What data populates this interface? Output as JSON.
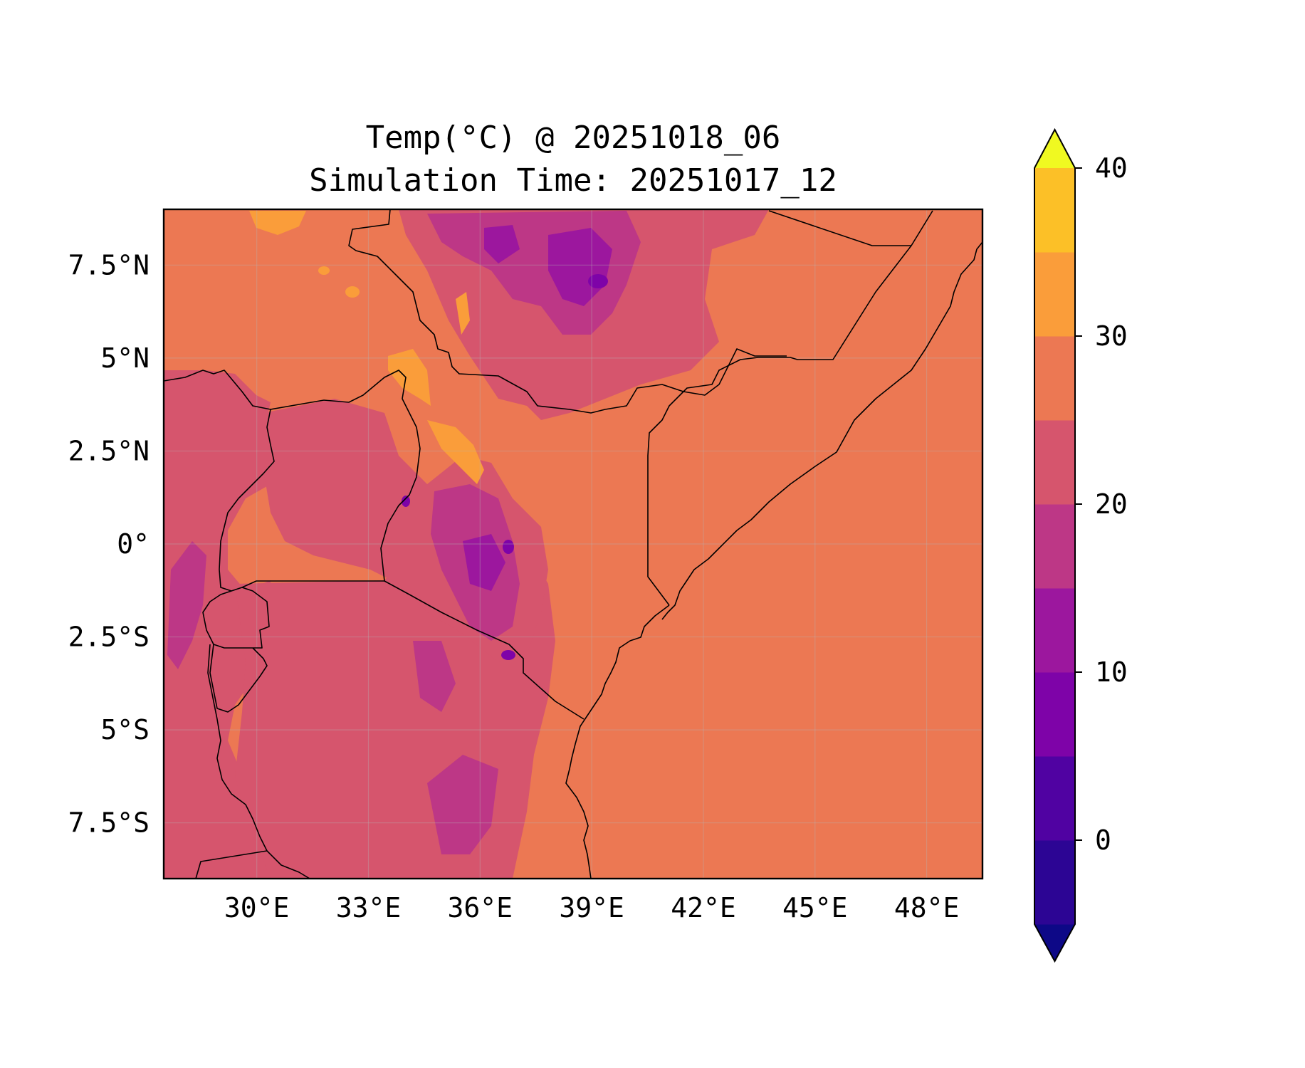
{
  "title": {
    "line1": "Temp(°C) @ 20251018_06",
    "line2": "Simulation Time: 20251017_12"
  },
  "map": {
    "projection": "lat-lon",
    "lon_range": [
      27.5,
      49.5
    ],
    "lat_range": [
      -9,
      9
    ],
    "gridlines": true,
    "boundaries": "country borders and coastline",
    "x_ticks": [
      "30°E",
      "33°E",
      "36°E",
      "39°E",
      "42°E",
      "45°E",
      "48°E"
    ],
    "y_ticks": [
      "7.5°N",
      "5°N",
      "2.5°N",
      "0°",
      "2.5°S",
      "5°S",
      "7.5°S"
    ]
  },
  "colorbar": {
    "ticks": [
      "0",
      "10",
      "20",
      "30",
      "40"
    ],
    "levels": [
      -5,
      0,
      5,
      10,
      15,
      20,
      25,
      30,
      35,
      40
    ],
    "extend": "both",
    "colors": [
      "#0d0887",
      "#2c0594",
      "#5002a2",
      "#7e03a8",
      "#9c179e",
      "#bd3786",
      "#d6556d",
      "#ec7853",
      "#fa9d3a",
      "#fcc027",
      "#f0f921"
    ]
  }
}
